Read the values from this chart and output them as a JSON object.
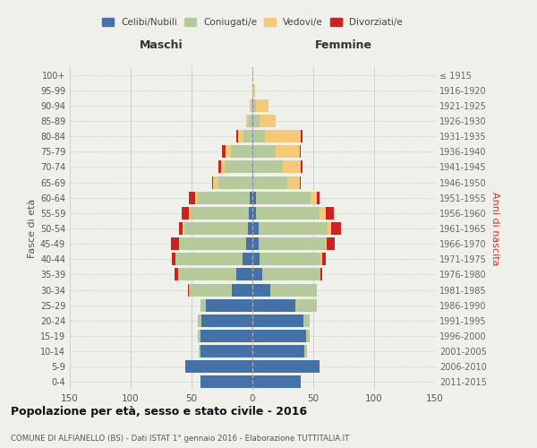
{
  "age_groups": [
    "0-4",
    "5-9",
    "10-14",
    "15-19",
    "20-24",
    "25-29",
    "30-34",
    "35-39",
    "40-44",
    "45-49",
    "50-54",
    "55-59",
    "60-64",
    "65-69",
    "70-74",
    "75-79",
    "80-84",
    "85-89",
    "90-94",
    "95-99",
    "100+"
  ],
  "birth_years": [
    "2011-2015",
    "2006-2010",
    "2001-2005",
    "1996-2000",
    "1991-1995",
    "1986-1990",
    "1981-1985",
    "1976-1980",
    "1971-1975",
    "1966-1970",
    "1961-1965",
    "1956-1960",
    "1951-1955",
    "1946-1950",
    "1941-1945",
    "1936-1940",
    "1931-1935",
    "1926-1930",
    "1921-1925",
    "1916-1920",
    "≤ 1915"
  ],
  "male": {
    "celibi": [
      43,
      55,
      43,
      43,
      42,
      38,
      17,
      13,
      8,
      5,
      4,
      3,
      2,
      0,
      0,
      0,
      0,
      0,
      0,
      0,
      0
    ],
    "coniugati": [
      0,
      0,
      1,
      2,
      3,
      5,
      35,
      48,
      55,
      55,
      52,
      48,
      43,
      28,
      23,
      18,
      7,
      3,
      1,
      0,
      0
    ],
    "vedovi": [
      0,
      0,
      0,
      0,
      0,
      0,
      0,
      0,
      0,
      0,
      1,
      1,
      2,
      4,
      3,
      4,
      5,
      2,
      1,
      0,
      0
    ],
    "divorziati": [
      0,
      0,
      0,
      0,
      0,
      0,
      1,
      3,
      3,
      7,
      3,
      6,
      5,
      1,
      2,
      3,
      1,
      0,
      0,
      0,
      0
    ]
  },
  "female": {
    "nubili": [
      40,
      55,
      43,
      44,
      42,
      35,
      15,
      8,
      6,
      5,
      5,
      3,
      3,
      1,
      1,
      1,
      1,
      1,
      1,
      0,
      0
    ],
    "coniugate": [
      0,
      0,
      2,
      3,
      5,
      18,
      38,
      48,
      50,
      55,
      57,
      52,
      45,
      28,
      24,
      18,
      9,
      5,
      2,
      1,
      0
    ],
    "vedove": [
      0,
      0,
      0,
      0,
      0,
      0,
      0,
      0,
      1,
      1,
      3,
      5,
      5,
      10,
      15,
      20,
      30,
      13,
      10,
      1,
      0
    ],
    "divorziate": [
      0,
      0,
      0,
      0,
      0,
      0,
      0,
      1,
      3,
      7,
      8,
      7,
      2,
      1,
      1,
      1,
      1,
      0,
      0,
      0,
      0
    ]
  },
  "colors": {
    "celibi": "#4472a8",
    "coniugati": "#b5c99a",
    "vedovi": "#f5c97a",
    "divorziati": "#cc2222"
  },
  "title": "Popolazione per età, sesso e stato civile - 2016",
  "subtitle": "COMUNE DI ALFIANELLO (BS) - Dati ISTAT 1° gennaio 2016 - Elaborazione TUTTITALIA.IT",
  "xlabel_left": "Maschi",
  "xlabel_right": "Femmine",
  "ylabel_left": "Fasce di età",
  "ylabel_right": "Anni di nascita",
  "xlim": 150,
  "bg_color": "#f0f0eb",
  "grid_color": "#cccccc"
}
